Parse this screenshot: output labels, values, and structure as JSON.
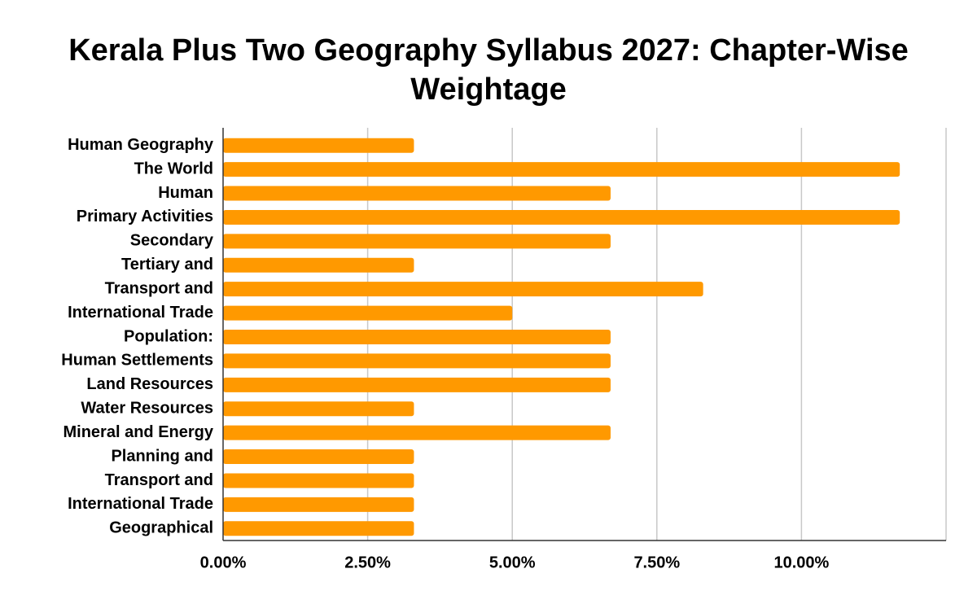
{
  "chart_data": {
    "type": "bar",
    "orientation": "horizontal",
    "title": "Kerala Plus Two Geography Syllabus 2027: Chapter-Wise Weightage",
    "categories": [
      "Human Geography",
      "The World",
      "Human",
      "Primary Activities",
      "Secondary",
      "Tertiary and",
      "Transport and",
      "International Trade",
      "Population:",
      "Human Settlements",
      "Land Resources",
      "Water Resources",
      "Mineral and Energy",
      "Planning and",
      "Transport and",
      "International Trade",
      "Geographical"
    ],
    "values": [
      3.3,
      11.7,
      6.7,
      11.7,
      6.7,
      3.3,
      8.3,
      5.0,
      6.7,
      6.7,
      6.7,
      3.3,
      6.7,
      3.3,
      3.3,
      3.3,
      3.3
    ],
    "color": "#ff9900",
    "xlim": [
      0,
      12.5
    ],
    "xticks": [
      {
        "value": 0,
        "label": "0.00%"
      },
      {
        "value": 2.5,
        "label": "2.50%"
      },
      {
        "value": 5,
        "label": "5.00%"
      },
      {
        "value": 7.5,
        "label": "7.50%"
      },
      {
        "value": 10,
        "label": "10.00%"
      }
    ],
    "grid": true
  }
}
